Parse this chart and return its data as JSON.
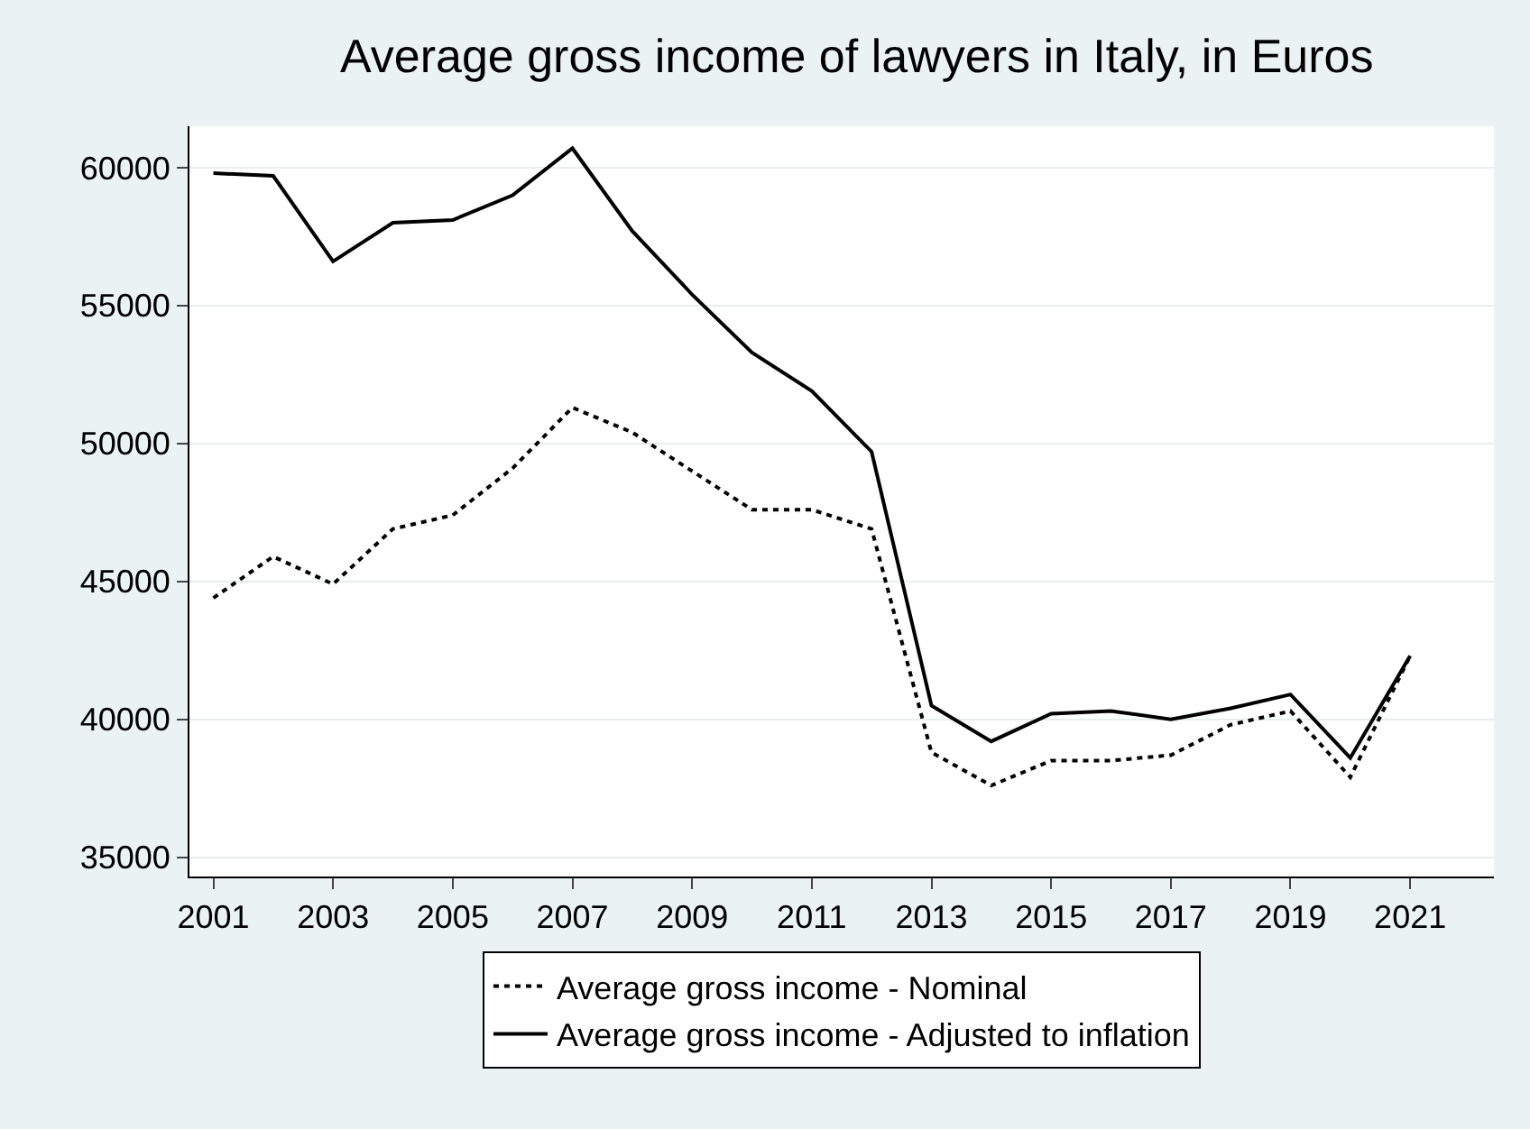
{
  "chart_data": {
    "type": "line",
    "title": "Average gross income of lawyers in Italy, in Euros",
    "x": [
      2001,
      2002,
      2003,
      2004,
      2005,
      2006,
      2007,
      2008,
      2009,
      2010,
      2011,
      2012,
      2013,
      2014,
      2015,
      2016,
      2017,
      2018,
      2019,
      2020,
      2021
    ],
    "series": [
      {
        "name": "Average gross income - Nominal",
        "color": "#000000",
        "line_style": "dashed",
        "values": [
          44400,
          45900,
          44900,
          46900,
          47400,
          49100,
          51300,
          50400,
          49000,
          47600,
          47600,
          46900,
          38800,
          37600,
          38500,
          38500,
          38700,
          39800,
          40300,
          37900,
          42300
        ]
      },
      {
        "name": "Average gross income - Adjusted to inflation",
        "color": "#000000",
        "line_style": "solid",
        "values": [
          59800,
          59700,
          56600,
          58000,
          58100,
          59000,
          60700,
          57700,
          55400,
          53300,
          51900,
          49700,
          40500,
          39200,
          40200,
          40300,
          40000,
          40400,
          40900,
          38600,
          42300
        ]
      }
    ],
    "xlim": [
      2000.6,
      2022.4
    ],
    "xticks": [
      2001,
      2003,
      2005,
      2007,
      2009,
      2011,
      2013,
      2015,
      2017,
      2019,
      2021
    ],
    "ylim": [
      34300,
      61500
    ],
    "yticks": [
      35000,
      40000,
      45000,
      50000,
      55000,
      60000
    ],
    "grid": "y",
    "legend": "bottom",
    "marker": "none"
  }
}
